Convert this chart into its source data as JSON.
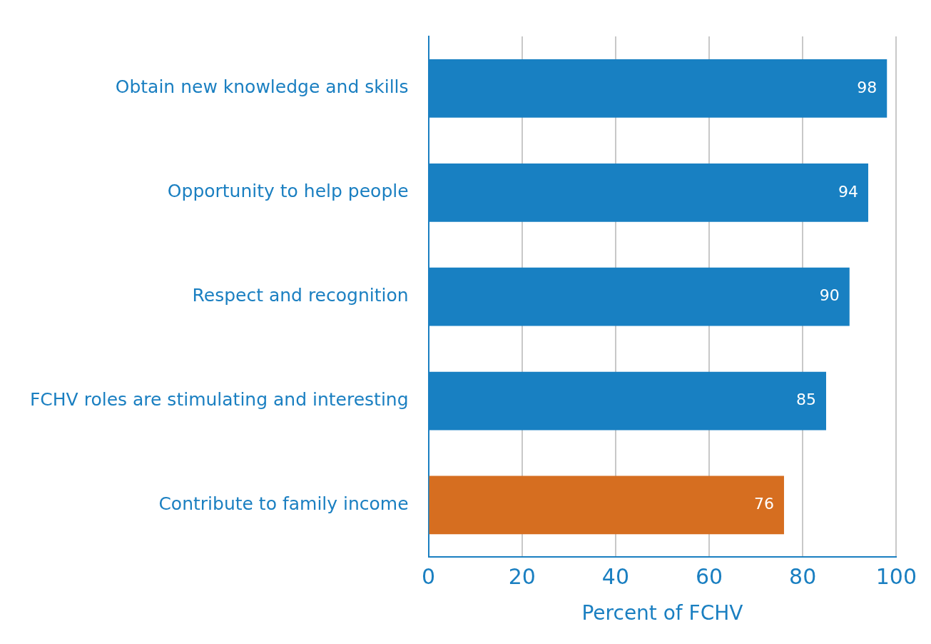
{
  "chart_data": {
    "type": "bar",
    "orientation": "horizontal",
    "xlabel": "Percent of FCHV",
    "categories": [
      "Obtain new knowledge and skills",
      "Opportunity to help people",
      "Respect and recognition",
      "FCHV roles are stimulating and interesting",
      "Contribute to family income"
    ],
    "values": [
      98,
      94,
      90,
      85,
      76
    ],
    "colors": [
      "#1880c2",
      "#1880c2",
      "#1880c2",
      "#1880c2",
      "#d66e20"
    ],
    "xlim": [
      0,
      100
    ],
    "xticks": [
      0,
      20,
      40,
      60,
      80,
      100
    ],
    "grid": "x",
    "data_labels": true
  }
}
